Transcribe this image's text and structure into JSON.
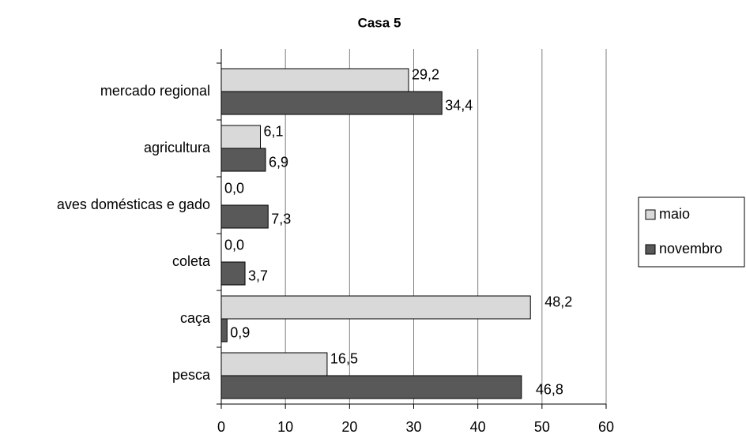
{
  "chart_data": {
    "type": "bar",
    "orientation": "horizontal",
    "title": "Casa 5",
    "categories": [
      "mercado regional",
      "agricultura",
      "aves domésticas e gado",
      "coleta",
      "caça",
      "pesca"
    ],
    "series": [
      {
        "name": "maio",
        "color": "#d9d9d9",
        "values": [
          29.2,
          6.1,
          0.0,
          0.0,
          48.2,
          16.5
        ],
        "value_labels": [
          "29,2",
          "6,1",
          "0,0",
          "0,0",
          "48,2",
          "16,5"
        ]
      },
      {
        "name": "novembro",
        "color": "#595959",
        "values": [
          34.4,
          6.9,
          7.3,
          3.7,
          0.9,
          46.8
        ],
        "value_labels": [
          "34,4",
          "6,9",
          "7,3",
          "3,7",
          "0,9",
          "46,8"
        ]
      }
    ],
    "xlim": [
      0,
      60
    ],
    "xticks": [
      0,
      10,
      20,
      30,
      40,
      50,
      60
    ],
    "grid": true,
    "legend": "right"
  }
}
